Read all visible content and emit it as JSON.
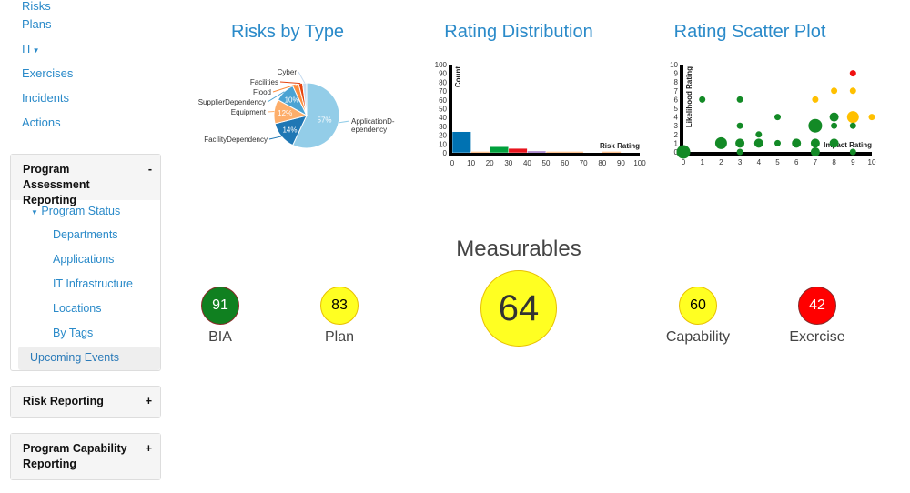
{
  "sidebar": {
    "top_items": [
      "Risks",
      "Plans",
      "IT",
      "Exercises",
      "Incidents",
      "Actions"
    ],
    "panels": [
      {
        "title": "Program Assessment Reporting",
        "toggle": "-",
        "group": "Program Status",
        "items": [
          "Departments",
          "Applications",
          "IT Infrastructure",
          "Locations",
          "By Tags"
        ],
        "extra": "Upcoming Events"
      },
      {
        "title": "Risk Reporting",
        "toggle": "+"
      },
      {
        "title": "Program Capability Reporting",
        "toggle": "+"
      }
    ]
  },
  "chart_data": [
    {
      "type": "pie",
      "title": "Risks by Type",
      "slices": [
        {
          "label": "ApplicationDependency",
          "value": 57,
          "display": "57%",
          "color": "#93cde8"
        },
        {
          "label": "FacilityDependency",
          "value": 14,
          "display": "14%",
          "color": "#1f77b4"
        },
        {
          "label": "Equipment",
          "value": 12,
          "display": "12%",
          "color": "#fdae6b"
        },
        {
          "label": "SupplierDependency",
          "value": 10,
          "display": "10%",
          "color": "#4ba3d3"
        },
        {
          "label": "Flood",
          "value": 3,
          "display": "",
          "color": "#fd8d3c"
        },
        {
          "label": "Facilities",
          "value": 2,
          "display": "",
          "color": "#e6440d"
        },
        {
          "label": "Cyber",
          "value": 2,
          "display": "",
          "color": "#c6dbef"
        }
      ]
    },
    {
      "type": "bar",
      "title": "Rating Distribution",
      "xlabel": "Risk Rating",
      "ylabel": "Count",
      "xlim": [
        0,
        100
      ],
      "ylim": [
        0,
        100
      ],
      "xticks": [
        0,
        10,
        20,
        30,
        40,
        50,
        60,
        70,
        80,
        90,
        100
      ],
      "yticks": [
        0,
        10,
        20,
        30,
        40,
        50,
        60,
        70,
        80,
        90,
        100
      ],
      "bins": [
        {
          "from": 0,
          "to": 10,
          "value": 24,
          "color": "#0072b2"
        },
        {
          "from": 10,
          "to": 20,
          "value": 1,
          "color": "#fdae6b"
        },
        {
          "from": 20,
          "to": 30,
          "value": 7,
          "color": "#00a03c"
        },
        {
          "from": 30,
          "to": 40,
          "value": 5,
          "color": "#e8141e"
        },
        {
          "from": 40,
          "to": 50,
          "value": 2,
          "color": "#9467bd"
        },
        {
          "from": 50,
          "to": 70,
          "value": 1,
          "color": "#fdae6b"
        },
        {
          "from": 80,
          "to": 90,
          "value": 1,
          "color": "#fdae6b"
        }
      ]
    },
    {
      "type": "scatter",
      "title": "Rating Scatter Plot",
      "xlabel": "Impact Rating",
      "ylabel": "Likelihood Rating",
      "xlim": [
        0,
        10
      ],
      "ylim": [
        0,
        10
      ],
      "xticks": [
        0,
        1,
        2,
        3,
        4,
        5,
        6,
        7,
        8,
        9,
        10
      ],
      "yticks": [
        0,
        1,
        2,
        3,
        4,
        5,
        6,
        7,
        8,
        9,
        10
      ],
      "points": [
        {
          "x": 0,
          "y": 0,
          "count": 4,
          "color": "#138a26"
        },
        {
          "x": 1,
          "y": 6,
          "count": 1,
          "color": "#138a26"
        },
        {
          "x": 2,
          "y": 1,
          "count": 3,
          "color": "#138a26"
        },
        {
          "x": 3,
          "y": 6,
          "count": 1,
          "color": "#138a26"
        },
        {
          "x": 3,
          "y": 3,
          "count": 1,
          "color": "#138a26"
        },
        {
          "x": 3,
          "y": 1,
          "count": 2,
          "color": "#138a26"
        },
        {
          "x": 3,
          "y": 0,
          "count": 1,
          "color": "#138a26"
        },
        {
          "x": 4,
          "y": 2,
          "count": 1,
          "color": "#138a26"
        },
        {
          "x": 4,
          "y": 1,
          "count": 2,
          "color": "#138a26"
        },
        {
          "x": 5,
          "y": 4,
          "count": 1,
          "color": "#138a26"
        },
        {
          "x": 5,
          "y": 1,
          "count": 1,
          "color": "#138a26"
        },
        {
          "x": 6,
          "y": 1,
          "count": 2,
          "color": "#138a26"
        },
        {
          "x": 7,
          "y": 6,
          "count": 1,
          "color": "#ffc000"
        },
        {
          "x": 7,
          "y": 3,
          "count": 4,
          "color": "#138a26"
        },
        {
          "x": 7,
          "y": 1,
          "count": 2,
          "color": "#138a26"
        },
        {
          "x": 7,
          "y": 0,
          "count": 2,
          "color": "#138a26"
        },
        {
          "x": 8,
          "y": 7,
          "count": 1,
          "color": "#ffc000"
        },
        {
          "x": 8,
          "y": 4,
          "count": 2,
          "color": "#138a26"
        },
        {
          "x": 8,
          "y": 3,
          "count": 1,
          "color": "#138a26"
        },
        {
          "x": 8,
          "y": 1,
          "count": 2,
          "color": "#138a26"
        },
        {
          "x": 9,
          "y": 9,
          "count": 1,
          "color": "#f01010"
        },
        {
          "x": 9,
          "y": 7,
          "count": 1,
          "color": "#ffc000"
        },
        {
          "x": 9,
          "y": 4,
          "count": 3,
          "color": "#ffc000"
        },
        {
          "x": 9,
          "y": 3,
          "count": 1,
          "color": "#138a26"
        },
        {
          "x": 9,
          "y": 0,
          "count": 1,
          "color": "#138a26"
        },
        {
          "x": 10,
          "y": 4,
          "count": 1,
          "color": "#ffc000"
        }
      ]
    }
  ],
  "measurables": {
    "title": "Measurables",
    "overall": {
      "value": "64",
      "color": "#ffff22"
    },
    "items": [
      {
        "label": "BIA",
        "value": "91",
        "color": "#108020",
        "text": "#fff"
      },
      {
        "label": "Plan",
        "value": "83",
        "color": "#ffff22",
        "text": "#000"
      },
      {
        "label": "Capability",
        "value": "60",
        "color": "#ffff22",
        "text": "#000"
      },
      {
        "label": "Exercise",
        "value": "42",
        "color": "#ff0000",
        "text": "#fff"
      }
    ]
  }
}
